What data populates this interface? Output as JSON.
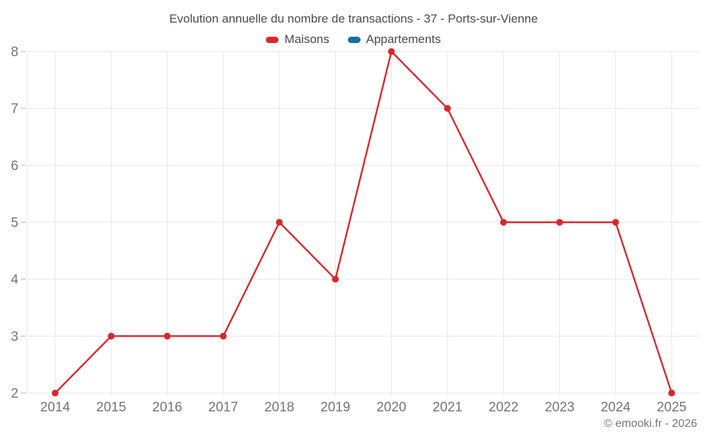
{
  "header": {
    "title": "Evolution annuelle du nombre de transactions - 37 - Ports-sur-Vienne"
  },
  "legend": {
    "items": [
      {
        "label": "Maisons",
        "color": "#d9282c"
      },
      {
        "label": "Appartements",
        "color": "#17709f"
      }
    ]
  },
  "footer": {
    "copyright": "© emooki.fr - 2026"
  },
  "styles": {
    "background": "#ffffff",
    "title_color": "#4a4a4a",
    "axis_label_color": "#757575",
    "grid_color": "#e7e7e7",
    "tick_color": "#b0b0b0"
  },
  "chart_data": {
    "type": "line",
    "title": "Evolution annuelle du nombre de transactions - 37 - Ports-sur-Vienne",
    "categories": [
      "2014",
      "2015",
      "2016",
      "2017",
      "2018",
      "2019",
      "2020",
      "2021",
      "2022",
      "2023",
      "2024",
      "2025"
    ],
    "series": [
      {
        "name": "Maisons",
        "color": "#d9282c",
        "values": [
          2,
          3,
          3,
          3,
          5,
          4,
          8,
          7,
          5,
          5,
          5,
          2
        ],
        "marker": "circle"
      },
      {
        "name": "Appartements",
        "color": "#17709f",
        "values": []
      }
    ],
    "xlabel": "",
    "ylabel": "",
    "ylim": [
      2,
      8
    ],
    "yticks": [
      2,
      3,
      4,
      5,
      6,
      7,
      8
    ],
    "grid": true,
    "legend_position": "top"
  }
}
